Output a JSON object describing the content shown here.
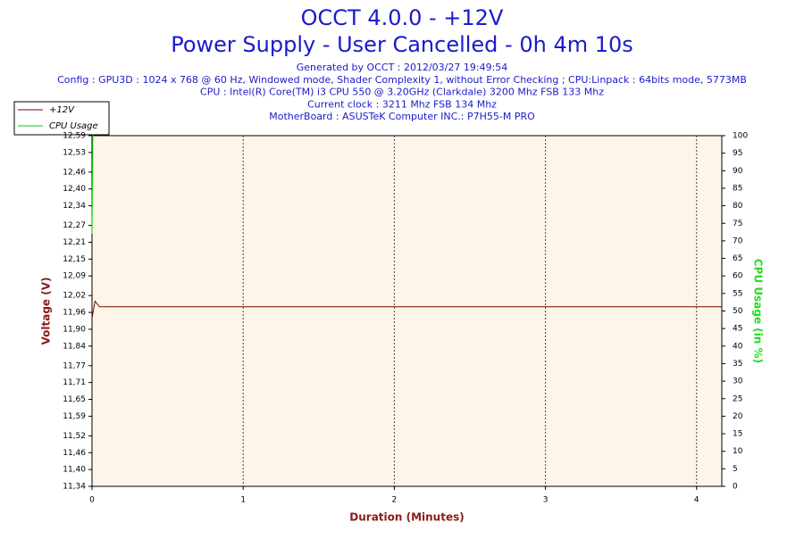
{
  "chart_data": {
    "type": "line",
    "title": "OCCT 4.0.0 - +12V",
    "subtitle": "Power Supply - User Cancelled - 0h 4m 10s",
    "info": [
      "Generated by OCCT : 2012/03/27 19:49:54",
      "Config : GPU3D : 1024 x 768 @ 60 Hz, Windowed mode, Shader Complexity 1, without Error Checking ; CPU:Linpack : 64bits mode, 5773MB",
      "CPU : Intel(R) Core(TM) i3 CPU 550 @ 3.20GHz (Clarkdale) 3200 Mhz FSB 133 Mhz",
      "Current clock : 3211 Mhz FSB 134 Mhz",
      "MotherBoard : ASUSTeK Computer INC.: P7H55-M PRO"
    ],
    "x_label": "Duration (Minutes)",
    "y_label": "Voltage (V)",
    "y2_label": "CPU Usage (in %)",
    "xlim": [
      0,
      4.1667
    ],
    "xticks": [
      0,
      1,
      2,
      3,
      4
    ],
    "ylim": [
      11.34,
      12.59
    ],
    "yticks": [
      {
        "value": 11.34,
        "label": "11,34"
      },
      {
        "value": 11.4,
        "label": "11,40"
      },
      {
        "value": 11.46,
        "label": "11,46"
      },
      {
        "value": 11.52,
        "label": "11,52"
      },
      {
        "value": 11.59,
        "label": "11,59"
      },
      {
        "value": 11.65,
        "label": "11,65"
      },
      {
        "value": 11.71,
        "label": "11,71"
      },
      {
        "value": 11.77,
        "label": "11,77"
      },
      {
        "value": 11.84,
        "label": "11,84"
      },
      {
        "value": 11.9,
        "label": "11,90"
      },
      {
        "value": 11.96,
        "label": "11,96"
      },
      {
        "value": 12.02,
        "label": "12,02"
      },
      {
        "value": 12.09,
        "label": "12,09"
      },
      {
        "value": 12.15,
        "label": "12,15"
      },
      {
        "value": 12.21,
        "label": "12,21"
      },
      {
        "value": 12.27,
        "label": "12,27"
      },
      {
        "value": 12.34,
        "label": "12,34"
      },
      {
        "value": 12.4,
        "label": "12,40"
      },
      {
        "value": 12.46,
        "label": "12,46"
      },
      {
        "value": 12.53,
        "label": "12,53"
      },
      {
        "value": 12.59,
        "label": "12,59"
      }
    ],
    "y2lim": [
      0,
      100
    ],
    "y2ticks": [
      0,
      5,
      10,
      15,
      20,
      25,
      30,
      35,
      40,
      45,
      50,
      55,
      60,
      65,
      70,
      75,
      80,
      85,
      90,
      95,
      100
    ],
    "grid": true,
    "series": [
      {
        "name": "+12V",
        "color": "#800000",
        "x": [
          0,
          0.02,
          0.05,
          4.1667
        ],
        "values": [
          11.94,
          12.0,
          11.98,
          11.98
        ]
      },
      {
        "name": "CPU Usage",
        "color": "#00cc00",
        "axis": "y2",
        "x": [
          0,
          0.005,
          0.01
        ],
        "values": [
          72,
          100,
          100
        ]
      }
    ]
  }
}
